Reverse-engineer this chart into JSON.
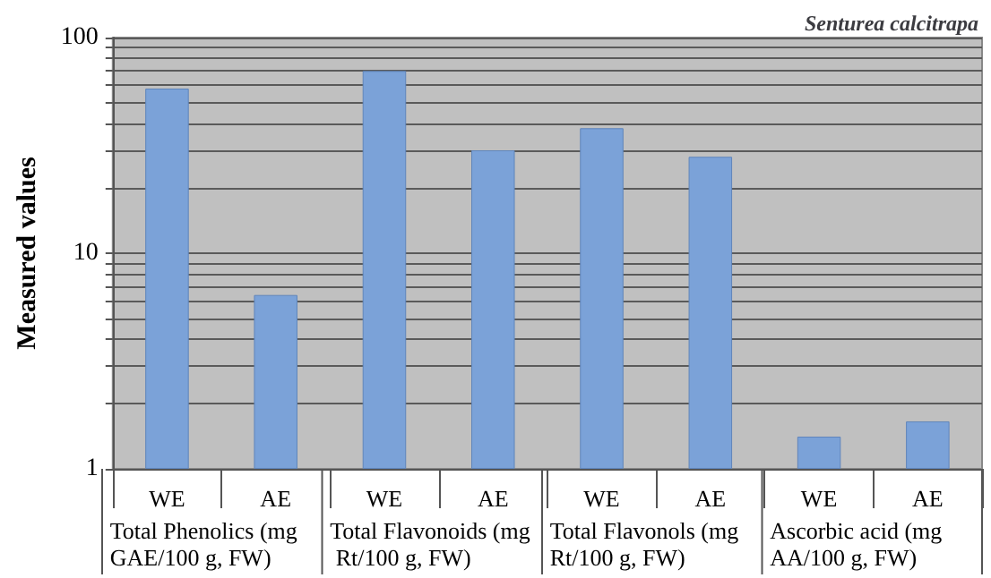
{
  "chart_data": {
    "type": "bar",
    "title": "Senturea calcitrapa",
    "ylabel": "Measured values",
    "categories": [
      "WE",
      "AE",
      "WE",
      "AE",
      "WE",
      "AE",
      "WE",
      "AE"
    ],
    "values": [
      58,
      6.4,
      70,
      30,
      38,
      28,
      1.41,
      1.66
    ],
    "color": "#7ba2d8",
    "log": true,
    "ylim": [
      1,
      100
    ],
    "yticks": [
      1,
      {
        "value": 2,
        "label": null
      },
      {
        "value": 3,
        "label": null
      },
      {
        "value": 4,
        "label": null
      },
      {
        "value": 5,
        "label": null
      },
      {
        "value": 6,
        "label": null
      },
      {
        "value": 7,
        "label": null
      },
      {
        "value": 8,
        "label": null
      },
      {
        "value": 9,
        "label": null
      },
      10,
      {
        "value": 20,
        "label": null
      },
      {
        "value": 30,
        "label": null
      },
      {
        "value": 40,
        "label": null
      },
      {
        "value": 50,
        "label": null
      },
      {
        "value": 60,
        "label": null
      },
      {
        "value": 70,
        "label": null
      },
      {
        "value": 80,
        "label": null
      },
      {
        "value": 90,
        "label": null
      },
      100
    ],
    "grid": true,
    "annotations": [
      "Total Phenolics (mg GAE/100 g, FW)",
      "Total Flavonoids (mg Rt/100 g, FW)",
      "Total Flavonols (mg Rt/100 g, FW)",
      "Ascorbic acid (mg AA/100 g, FW)"
    ]
  }
}
